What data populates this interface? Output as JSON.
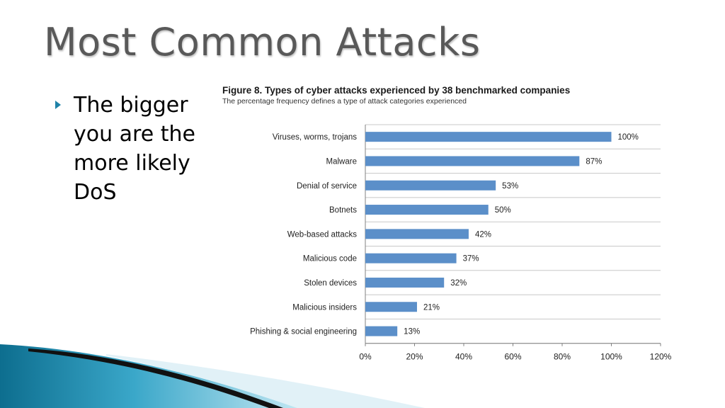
{
  "slide": {
    "title": "Most Common Attacks",
    "bullets": [
      {
        "text": "The bigger you are the more likely DoS"
      }
    ]
  },
  "colors": {
    "bar": "#5b8fc9",
    "accent": "#1f82a8",
    "title": "#595959"
  },
  "chart_data": {
    "type": "bar",
    "orientation": "horizontal",
    "title": "Figure 8. Types of cyber attacks experienced by 38 benchmarked companies",
    "subtitle": "The percentage frequency defines a type of attack categories experienced",
    "categories": [
      "Viruses, worms, trojans",
      "Malware",
      "Denial of service",
      "Botnets",
      "Web-based attacks",
      "Malicious code",
      "Stolen devices",
      "Malicious insiders",
      "Phishing & social engineering"
    ],
    "values": [
      100,
      87,
      53,
      50,
      42,
      37,
      32,
      21,
      13
    ],
    "data_labels": [
      "100%",
      "87%",
      "53%",
      "50%",
      "42%",
      "37%",
      "32%",
      "21%",
      "13%"
    ],
    "xlim": [
      0,
      120
    ],
    "xticks": [
      "0%",
      "20%",
      "40%",
      "60%",
      "80%",
      "100%",
      "120%"
    ],
    "xlabel": "",
    "ylabel": "",
    "grid": "horizontal separators between categories"
  }
}
